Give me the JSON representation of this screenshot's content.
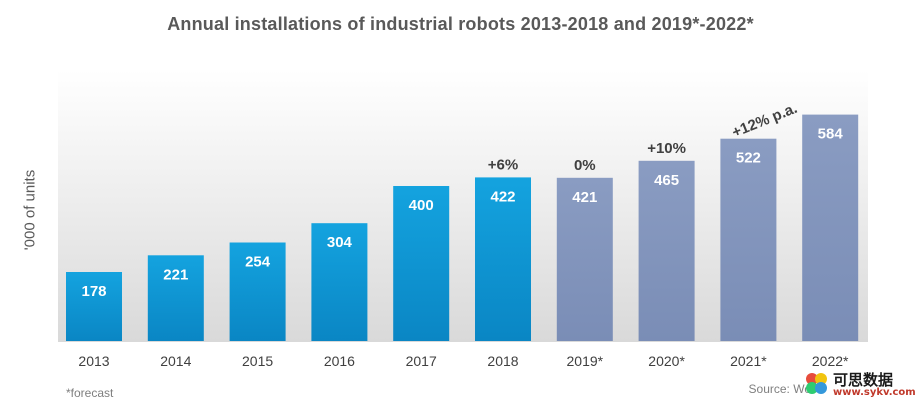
{
  "chart_data": {
    "type": "bar",
    "title": "Annual installations of industrial robots 2013-2018 and 2019*-2022*",
    "ylabel": "'000 of units",
    "xlabel": "",
    "categories": [
      "2013",
      "2014",
      "2015",
      "2016",
      "2017",
      "2018",
      "2019*",
      "2020*",
      "2021*",
      "2022*"
    ],
    "values": [
      178,
      221,
      254,
      304,
      400,
      422,
      421,
      465,
      522,
      584
    ],
    "data_labels": [
      "178",
      "221",
      "254",
      "304",
      "400",
      "422",
      "421",
      "465",
      "522",
      "584"
    ],
    "series_kind": [
      "actual",
      "actual",
      "actual",
      "actual",
      "actual",
      "actual",
      "forecast",
      "forecast",
      "forecast",
      "forecast"
    ],
    "colors": {
      "actual": "#0d9ad6",
      "forecast": "#8396bd",
      "label_text": "#ffffff",
      "axis_text": "#404040"
    },
    "annotations": [
      {
        "category": "2018",
        "text": "+6%"
      },
      {
        "category": "2019*",
        "text": "0%"
      },
      {
        "category": "2020*",
        "text": "+10%"
      },
      {
        "category": "2021*",
        "text": "+12% p.a."
      }
    ],
    "grid": false,
    "legend": "none",
    "footnote": "*forecast",
    "source": "Source: Wo"
  },
  "watermark": {
    "text": "可思数据",
    "url": "www.sykv.com",
    "colors": [
      "#e74c3c",
      "#f1c40f",
      "#2ecc71",
      "#3498db"
    ]
  }
}
